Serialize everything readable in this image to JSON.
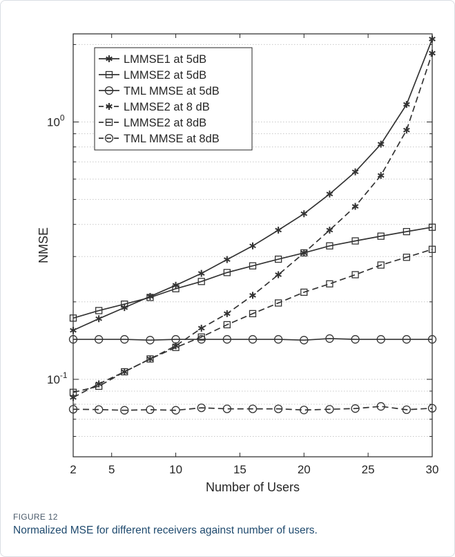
{
  "figure": {
    "label": "FIGURE 12",
    "caption": "Normalized MSE for different receivers against number of users."
  },
  "chart_data": {
    "type": "line",
    "title": "",
    "xlabel": "Number of Users",
    "ylabel": "NMSE",
    "xlim": [
      2,
      30
    ],
    "ylim": [
      0.05,
      2.2
    ],
    "yscale": "log",
    "x_ticks": [
      2,
      5,
      10,
      15,
      20,
      25,
      30
    ],
    "y_tick_labels": [
      {
        "value": 0.1,
        "base": "10",
        "exp": "-1"
      },
      {
        "value": 1,
        "base": "10",
        "exp": "0"
      }
    ],
    "grid": "horizontal dotted",
    "legend_position": "top-left",
    "x": [
      2,
      4,
      6,
      8,
      10,
      12,
      14,
      16,
      18,
      20,
      22,
      24,
      26,
      28,
      30
    ],
    "series": [
      {
        "name": "LMMSE1 at 5dB",
        "line": "solid",
        "marker": "asterisk",
        "values": [
          0.155,
          0.172,
          0.19,
          0.21,
          0.232,
          0.258,
          0.292,
          0.33,
          0.38,
          0.44,
          0.525,
          0.64,
          0.82,
          1.17,
          2.1
        ]
      },
      {
        "name": "LMMSE2 at 5dB",
        "line": "solid",
        "marker": "square",
        "values": [
          0.173,
          0.185,
          0.196,
          0.208,
          0.225,
          0.24,
          0.26,
          0.276,
          0.293,
          0.31,
          0.33,
          0.345,
          0.36,
          0.375,
          0.39
        ]
      },
      {
        "name": "TML MMSE at 5dB",
        "line": "solid",
        "marker": "circle",
        "values": [
          0.143,
          0.143,
          0.143,
          0.142,
          0.143,
          0.143,
          0.143,
          0.143,
          0.143,
          0.142,
          0.144,
          0.143,
          0.143,
          0.143,
          0.143
        ]
      },
      {
        "name": "LMMSE2 at 8 dB",
        "line": "dashed",
        "marker": "asterisk",
        "values": [
          0.085,
          0.096,
          0.107,
          0.12,
          0.135,
          0.158,
          0.18,
          0.212,
          0.255,
          0.31,
          0.38,
          0.47,
          0.62,
          0.93,
          1.85
        ]
      },
      {
        "name": "LMMSE2 at 8dB",
        "line": "dashed",
        "marker": "square",
        "values": [
          0.089,
          0.094,
          0.107,
          0.12,
          0.133,
          0.146,
          0.163,
          0.18,
          0.198,
          0.218,
          0.235,
          0.255,
          0.278,
          0.298,
          0.32
        ]
      },
      {
        "name": "TML MMSE at 8dB",
        "line": "dashed",
        "marker": "circle",
        "values": [
          0.0765,
          0.0763,
          0.0758,
          0.0762,
          0.0758,
          0.0775,
          0.0768,
          0.0768,
          0.0768,
          0.076,
          0.0765,
          0.077,
          0.0785,
          0.0762,
          0.0772
        ]
      }
    ]
  }
}
